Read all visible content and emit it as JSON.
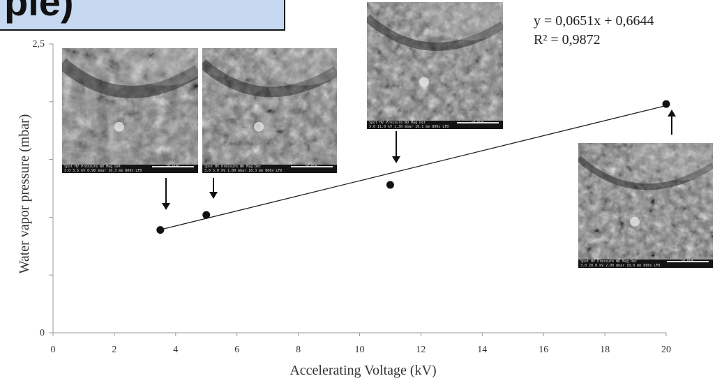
{
  "banner": {
    "text": "ple)",
    "color": "#c6d9f1"
  },
  "chart_data": {
    "type": "scatter",
    "xlabel": "Accelerating Voltage (kV)",
    "ylabel": "Water vapor pressure (mbar)",
    "xlim": [
      0,
      20
    ],
    "ylim": [
      0,
      2.5
    ],
    "x_ticks": [
      "0",
      "2",
      "4",
      "6",
      "8",
      "10",
      "12",
      "14",
      "16",
      "18",
      "20"
    ],
    "y_ticks": [
      {
        "value": 0,
        "label": "0"
      },
      {
        "value": 0.5,
        "label": ""
      },
      {
        "value": 1.0,
        "label": ""
      },
      {
        "value": 1.5,
        "label": ""
      },
      {
        "value": 2.0,
        "label": ""
      },
      {
        "value": 2.5,
        "label": "2,5"
      }
    ],
    "points": [
      {
        "x": 3.5,
        "y": 0.89
      },
      {
        "x": 5.0,
        "y": 1.02
      },
      {
        "x": 11.0,
        "y": 1.28
      },
      {
        "x": 20.0,
        "y": 1.98
      }
    ],
    "trendline": {
      "slope": 0.0651,
      "intercept": 0.6644,
      "x_range": [
        3.5,
        20
      ]
    },
    "equation": "y = 0,0651x + 0,6644",
    "r_squared": "R² = 0,9872",
    "grid": false,
    "marker_color": "#111111"
  },
  "sem_images": [
    {
      "caption_line1": "Spot   HV   Pressure   WD   Mag   Det",
      "caption_line2": "3.0  3.5 kV 0.90 mbar 10.3 mm 800x LFD",
      "scale_label": "50.0µm"
    },
    {
      "caption_line1": "Spot   HV   Pressure   WD   Mag   Det",
      "caption_line2": "3.0  5.0 kV 1.00 mbar 10.3 mm 800x LFD",
      "scale_label": "50.0µm"
    },
    {
      "caption_line1": "Spot   HV   Pressure   WD   Mag   Det",
      "caption_line2": "3.0  11.0 kV 1.30 mbar 10.1 mm 800x LFD",
      "scale_label": "50.0µm"
    },
    {
      "caption_line1": "Spot   HV   Pressure   WD   Mag   Det",
      "caption_line2": "3.0  20.0 kV 2.00 mbar 10.0 mm 800x LFD",
      "scale_label": "50.0µm"
    }
  ]
}
